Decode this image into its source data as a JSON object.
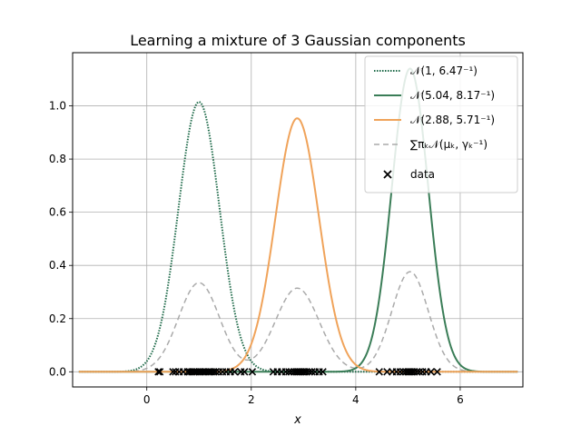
{
  "chart_data": {
    "type": "line",
    "title": "Learning a mixture of 3 Gaussian components",
    "xlabel": "x",
    "ylabel": "",
    "xlim": [
      -1.42,
      7.2
    ],
    "ylim": [
      -0.057,
      1.2
    ],
    "x_ticks": [
      0,
      2,
      4,
      6
    ],
    "y_ticks": [
      0.0,
      0.2,
      0.4,
      0.6,
      0.8,
      1.0
    ],
    "x_tick_labels": [
      "0",
      "2",
      "4",
      "6"
    ],
    "y_tick_labels": [
      "0.0",
      "0.2",
      "0.4",
      "0.6",
      "0.8",
      "1.0"
    ],
    "grid": true,
    "legend_position": "top-right",
    "curve_range": [
      -1.3,
      7.1
    ],
    "series": [
      {
        "name": "𝒩(1, 6.47⁻¹)",
        "kind": "gaussian",
        "mean": 1.0,
        "precision": 6.47,
        "color": "#1f6b4a",
        "style": "dotted"
      },
      {
        "name": "𝒩(5.04, 8.17⁻¹)",
        "kind": "gaussian",
        "mean": 5.04,
        "precision": 8.17,
        "color": "#3a7d57",
        "style": "solid"
      },
      {
        "name": "𝒩(2.88, 5.71⁻¹)",
        "kind": "gaussian",
        "mean": 2.88,
        "precision": 5.71,
        "color": "#f0a35a",
        "style": "solid"
      },
      {
        "name": "∑πₖ𝒩(μₖ, γₖ⁻¹)",
        "kind": "mixture",
        "weights": [
          0.33,
          0.33,
          0.33
        ],
        "color": "#aaaaaa",
        "style": "dashed"
      },
      {
        "name": "data",
        "kind": "scatter",
        "color": "#000000",
        "marker": "x",
        "x": [
          0.22,
          0.25,
          0.5,
          0.55,
          0.62,
          0.7,
          0.78,
          0.82,
          0.86,
          0.9,
          0.93,
          0.96,
          1.0,
          1.03,
          1.07,
          1.1,
          1.13,
          1.17,
          1.2,
          1.24,
          1.28,
          1.32,
          1.38,
          1.45,
          1.52,
          1.6,
          1.68,
          1.8,
          1.87,
          2.02,
          2.42,
          2.5,
          2.58,
          2.66,
          2.72,
          2.77,
          2.82,
          2.86,
          2.9,
          2.94,
          2.98,
          3.02,
          3.06,
          3.11,
          3.16,
          3.22,
          3.3,
          3.37,
          4.45,
          4.6,
          4.7,
          4.78,
          4.85,
          4.91,
          4.96,
          5.0,
          5.04,
          5.08,
          5.12,
          5.17,
          5.22,
          5.28,
          5.35,
          5.44,
          5.56
        ]
      }
    ]
  }
}
